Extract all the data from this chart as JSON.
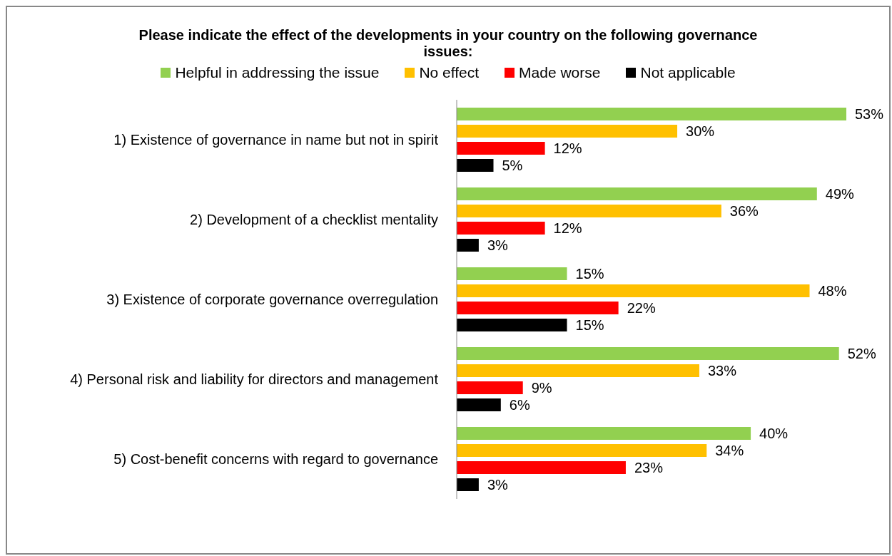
{
  "chart_data": {
    "type": "bar",
    "orientation": "horizontal",
    "title": "Please indicate the effect of the developments in your country on the following governance issues:",
    "categories": [
      "1) Existence of governance in name but not in spirit",
      "2) Development of a checklist mentality",
      "3) Existence of corporate governance overregulation",
      "4) Personal risk and liability for directors and management",
      "5) Cost-benefit concerns with regard to governance"
    ],
    "series": [
      {
        "name": "Helpful in addressing the issue",
        "color": "#92d050",
        "values": [
          53,
          49,
          15,
          52,
          40
        ],
        "value_labels": [
          "53%",
          "49%",
          "15%",
          "52%",
          "40%"
        ]
      },
      {
        "name": "No effect",
        "color": "#ffc000",
        "values": [
          30,
          36,
          48,
          33,
          34
        ],
        "value_labels": [
          "30%",
          "36%",
          "48%",
          "33%",
          "34%"
        ]
      },
      {
        "name": "Made worse",
        "color": "#ff0000",
        "values": [
          12,
          12,
          22,
          9,
          23
        ],
        "value_labels": [
          "12%",
          "12%",
          "22%",
          "9%",
          "23%"
        ]
      },
      {
        "name": "Not applicable",
        "color": "#000000",
        "values": [
          5,
          3,
          15,
          6,
          3
        ],
        "value_labels": [
          "5%",
          "3%",
          "15%",
          "6%",
          "3%"
        ]
      }
    ],
    "legend": "top",
    "grid": false
  }
}
